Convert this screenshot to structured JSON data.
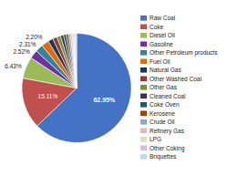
{
  "chart_data": {
    "type": "pie",
    "categories": [
      "Raw Coal",
      "Coke",
      "Diesel Oil",
      "Gasoline",
      "Other Petroleum products",
      "Fuel Oil",
      "Natural Gas",
      "Other Washed Coal",
      "Other Gas",
      "Cleaned Coal",
      "Coke Oven",
      "Kerosene",
      "Crude Oil",
      "Refinery Gas",
      "LPG",
      "Other Coking",
      "Briquettes"
    ],
    "values": [
      62.95,
      15.11,
      6.43,
      2.52,
      2.31,
      2.2,
      1.5,
      1.3,
      1.1,
      0.9,
      0.8,
      0.7,
      0.6,
      0.5,
      0.45,
      0.42,
      0.41
    ],
    "value_labels": [
      "62.95%",
      "15.11%",
      "6.43%",
      "2.52%",
      "2.31%",
      "2.20%",
      null,
      null,
      null,
      null,
      null,
      null,
      null,
      null,
      null,
      null,
      null
    ],
    "data_labels": true,
    "colors": [
      "#4472C4",
      "#C0504D",
      "#9BBB59",
      "#7030A0",
      "#31849B",
      "#E36C09",
      "#17375E",
      "#953735",
      "#76923C",
      "#403152",
      "#215868",
      "#974706",
      "#84ACCA",
      "#E6B8B7",
      "#D8E4BC",
      "#CCC0DA",
      "#B7DEE8"
    ],
    "legend": "right"
  }
}
